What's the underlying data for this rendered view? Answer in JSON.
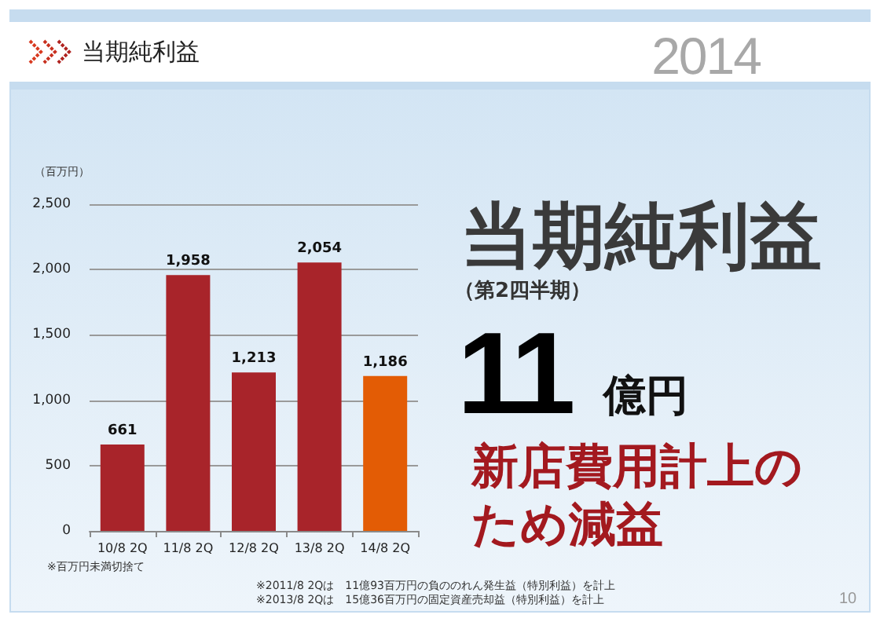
{
  "chart_data": {
    "type": "bar",
    "title": "当期純利益",
    "ylabel": "（百万円）",
    "categories": [
      "10/8 2Q",
      "11/8 2Q",
      "12/8 2Q",
      "13/8 2Q",
      "14/8 2Q"
    ],
    "values": [
      661,
      1958,
      1213,
      2054,
      1186
    ],
    "colors": [
      "#a8242a",
      "#a8242a",
      "#a8242a",
      "#a8242a",
      "#e35c05"
    ],
    "value_labels": [
      "661",
      "1,958",
      "1,213",
      "2,054",
      "1,186"
    ],
    "ylim": [
      0,
      2500
    ],
    "yticks": [
      0,
      500,
      {
        "value": 1000,
        "label": "1,000"
      },
      {
        "value": 1500,
        "label": "1,500"
      },
      {
        "value": 2000,
        "label": "2,000"
      },
      {
        "value": 2500,
        "label": "2,500"
      }
    ],
    "grid": "y",
    "annotations": [
      "2014",
      "当期純利益",
      "（第2四半期）",
      "11",
      "億円",
      "新店費用計上のため減益",
      "※百万円未満切捨て",
      "※2011/8 2Qは　11億93百万円の負ののれん発生益（特別利益）を計上",
      "※2013/8 2Qは　15億36百万円の固定資産売却益（特別利益）を計上",
      "10"
    ]
  }
}
